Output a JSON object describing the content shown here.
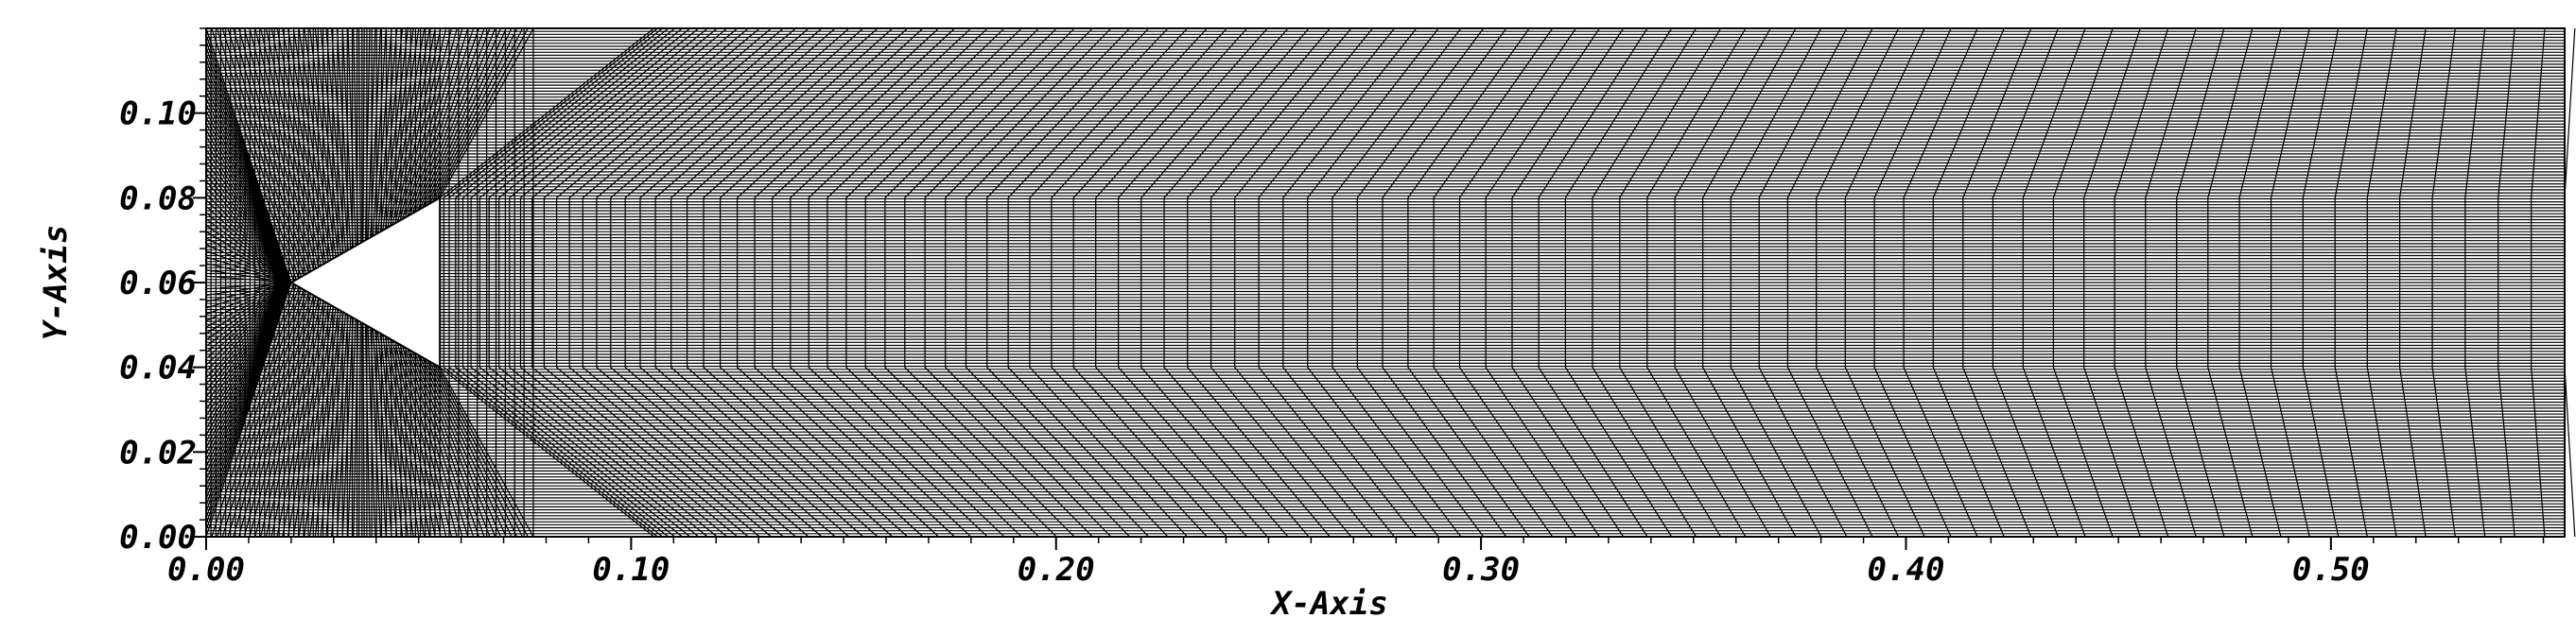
{
  "chart_data": {
    "type": "mesh",
    "title": "",
    "xlabel": "X-Axis",
    "ylabel": "Y-Axis",
    "xlim": [
      0.0,
      0.555
    ],
    "ylim": [
      0.0,
      0.12
    ],
    "x_ticks": [
      {
        "value": 0.0,
        "label": "0.00"
      },
      {
        "value": 0.1,
        "label": "0.10"
      },
      {
        "value": 0.2,
        "label": "0.20"
      },
      {
        "value": 0.3,
        "label": "0.30"
      },
      {
        "value": 0.4,
        "label": "0.40"
      },
      {
        "value": 0.5,
        "label": "0.50"
      }
    ],
    "y_ticks": [
      {
        "value": 0.0,
        "label": "0.00"
      },
      {
        "value": 0.02,
        "label": "0.02"
      },
      {
        "value": 0.04,
        "label": "0.04"
      },
      {
        "value": 0.06,
        "label": "0.06"
      },
      {
        "value": 0.08,
        "label": "0.08"
      },
      {
        "value": 0.1,
        "label": "0.10"
      }
    ],
    "body": {
      "shape": "triangle",
      "apex": [
        0.02,
        0.06
      ],
      "base_top": [
        0.055,
        0.08
      ],
      "base_bottom": [
        0.055,
        0.04
      ]
    },
    "grid": true,
    "legend": "none",
    "line_color": "#000000",
    "background": "#ffffff"
  }
}
